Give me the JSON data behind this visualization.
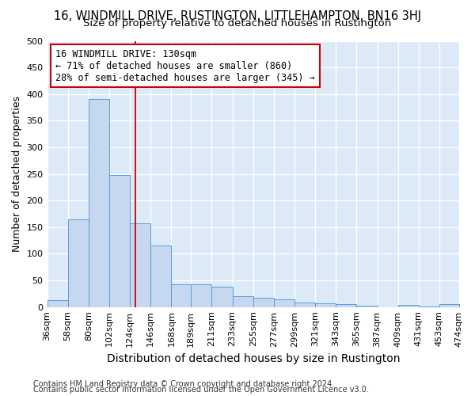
{
  "title": "16, WINDMILL DRIVE, RUSTINGTON, LITTLEHAMPTON, BN16 3HJ",
  "subtitle": "Size of property relative to detached houses in Rustington",
  "xlabel": "Distribution of detached houses by size in Rustington",
  "ylabel": "Number of detached properties",
  "footer_line1": "Contains HM Land Registry data © Crown copyright and database right 2024.",
  "footer_line2": "Contains public sector information licensed under the Open Government Licence v3.0.",
  "bar_left_edges": [
    36,
    58,
    80,
    102,
    124,
    146,
    168,
    189,
    211,
    233,
    255,
    277,
    299,
    321,
    343,
    365,
    387,
    409,
    431,
    453
  ],
  "bar_widths": [
    22,
    22,
    22,
    22,
    22,
    22,
    21,
    22,
    22,
    22,
    22,
    22,
    22,
    22,
    22,
    22,
    22,
    22,
    22,
    21
  ],
  "bar_heights": [
    13,
    165,
    390,
    248,
    157,
    115,
    43,
    42,
    38,
    20,
    17,
    14,
    9,
    7,
    5,
    2,
    0,
    4,
    1,
    6
  ],
  "bar_color": "#c5d8f0",
  "bar_edge_color": "#5b9bd5",
  "x_tick_labels": [
    "36sqm",
    "58sqm",
    "80sqm",
    "102sqm",
    "124sqm",
    "146sqm",
    "168sqm",
    "189sqm",
    "211sqm",
    "233sqm",
    "255sqm",
    "277sqm",
    "299sqm",
    "321sqm",
    "343sqm",
    "365sqm",
    "387sqm",
    "409sqm",
    "431sqm",
    "453sqm",
    "474sqm"
  ],
  "ylim": [
    0,
    500
  ],
  "xlim": [
    36,
    475
  ],
  "yticks": [
    0,
    50,
    100,
    150,
    200,
    250,
    300,
    350,
    400,
    450,
    500
  ],
  "property_line_x": 130,
  "property_line_color": "#cc0000",
  "annotation_text": "16 WINDMILL DRIVE: 130sqm\n← 71% of detached houses are smaller (860)\n28% of semi-detached houses are larger (345) →",
  "annotation_box_color": "white",
  "annotation_box_edge_color": "#cc0000",
  "fig_bg_color": "#ffffff",
  "plot_bg_color": "#dce9f7",
  "grid_color": "#ffffff",
  "title_fontsize": 10.5,
  "subtitle_fontsize": 9.5,
  "ylabel_fontsize": 9,
  "xlabel_fontsize": 10,
  "tick_fontsize": 8,
  "annotation_fontsize": 8.5,
  "footer_fontsize": 7
}
